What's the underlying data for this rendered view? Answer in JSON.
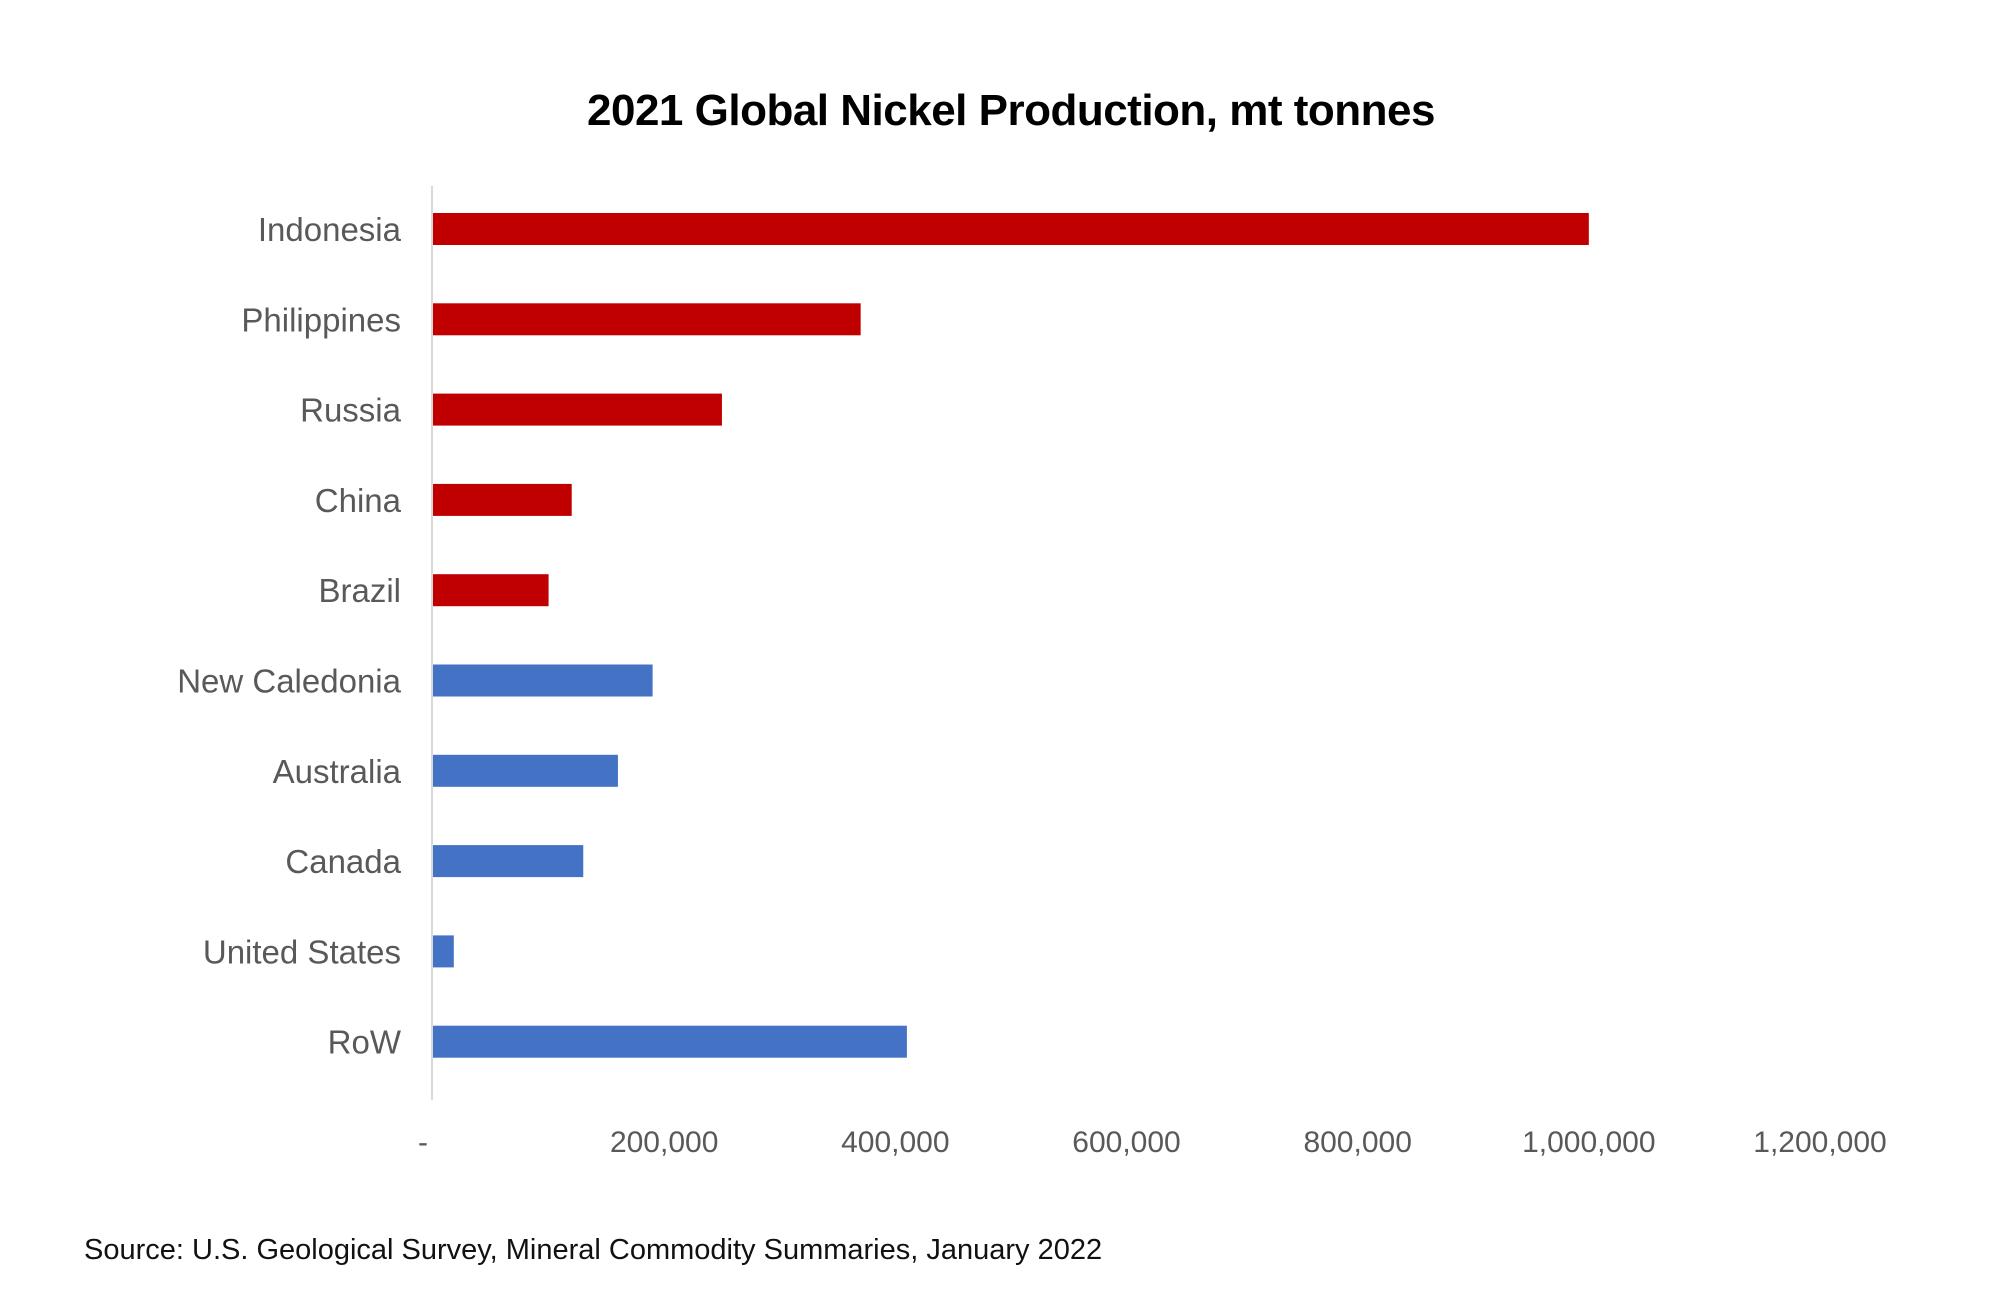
{
  "chart_data": {
    "type": "bar",
    "orientation": "horizontal",
    "title": "2021 Global Nickel Production, mt tonnes",
    "categories": [
      "Indonesia",
      "Philippines",
      "Russia",
      "China",
      "Brazil",
      "New Caledonia",
      "Australia",
      "Canada",
      "United States",
      "RoW"
    ],
    "values": [
      1000000,
      370000,
      250000,
      120000,
      100000,
      190000,
      160000,
      130000,
      18000,
      410000
    ],
    "bar_colors": [
      "#C00000",
      "#C00000",
      "#C00000",
      "#C00000",
      "#C00000",
      "#4472C4",
      "#4472C4",
      "#4472C4",
      "#4472C4",
      "#4472C4"
    ],
    "xlim": [
      0,
      1200000
    ],
    "x_ticks": [
      0,
      200000,
      400000,
      600000,
      800000,
      1000000,
      1200000
    ],
    "x_tick_labels": [
      "-",
      "200,000",
      "400,000",
      "600,000",
      "800,000",
      "1,000,000",
      "1,200,000"
    ],
    "xlabel": "",
    "ylabel": "",
    "grid": false,
    "legend": "none"
  },
  "source": "Source: U.S. Geological Survey, Mineral Commodity Summaries, January 2022"
}
